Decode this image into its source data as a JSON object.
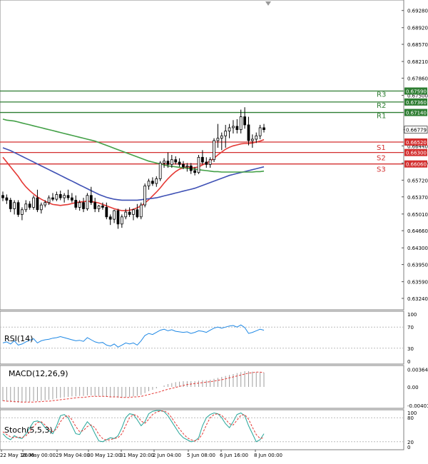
{
  "chart_data": [
    {
      "type": "candlestick",
      "panel": "price",
      "ylim": [
        0.63,
        0.695
      ],
      "y_ticks": [
        "0.69280",
        "0.68920",
        "0.68570",
        "0.68210",
        "0.67860",
        "0.67500",
        "0.66440",
        "0.66080",
        "0.65720",
        "0.65370",
        "0.65010",
        "0.64660",
        "0.64300",
        "0.63950",
        "0.63590",
        "0.63240"
      ],
      "current_price": "0.66779",
      "levels": [
        {
          "name": "R3",
          "value": "0.67590",
          "color": "#2e7d32"
        },
        {
          "name": "R2",
          "value": "0.67360",
          "color": "#2e7d32"
        },
        {
          "name": "R1",
          "value": "0.67140",
          "color": "#2e7d32"
        },
        {
          "name": "S1",
          "value": "0.66520",
          "color": "#d32f2f"
        },
        {
          "name": "S2",
          "value": "0.66300",
          "color": "#d32f2f"
        },
        {
          "name": "S3",
          "value": "0.66060",
          "color": "#d32f2f"
        }
      ],
      "candles": [
        [
          0.654,
          0.6548,
          0.6528,
          0.6535
        ],
        [
          0.6535,
          0.6542,
          0.6522,
          0.653
        ],
        [
          0.653,
          0.6535,
          0.6505,
          0.6512
        ],
        [
          0.6512,
          0.653,
          0.65,
          0.6525
        ],
        [
          0.6525,
          0.653,
          0.6495,
          0.65
        ],
        [
          0.65,
          0.6515,
          0.6488,
          0.651
        ],
        [
          0.651,
          0.653,
          0.6505,
          0.6522
        ],
        [
          0.6522,
          0.6528,
          0.651,
          0.6515
        ],
        [
          0.6515,
          0.654,
          0.651,
          0.6535
        ],
        [
          0.6535,
          0.6552,
          0.6505,
          0.651
        ],
        [
          0.651,
          0.6525,
          0.6502,
          0.652
        ],
        [
          0.652,
          0.653,
          0.6515,
          0.6525
        ],
        [
          0.6525,
          0.654,
          0.652,
          0.6535
        ],
        [
          0.6535,
          0.6545,
          0.6528,
          0.6532
        ],
        [
          0.6532,
          0.6548,
          0.6528,
          0.6542
        ],
        [
          0.6542,
          0.655,
          0.653,
          0.6535
        ],
        [
          0.6535,
          0.6545,
          0.6525,
          0.654
        ],
        [
          0.654,
          0.6552,
          0.653,
          0.6535
        ],
        [
          0.6535,
          0.6545,
          0.6525,
          0.653
        ],
        [
          0.653,
          0.654,
          0.651,
          0.6515
        ],
        [
          0.6515,
          0.653,
          0.6508,
          0.6525
        ],
        [
          0.6525,
          0.6535,
          0.6505,
          0.6512
        ],
        [
          0.6512,
          0.6545,
          0.6508,
          0.654
        ],
        [
          0.654,
          0.6558,
          0.652,
          0.6525
        ],
        [
          0.6525,
          0.6535,
          0.6505,
          0.6512
        ],
        [
          0.6512,
          0.652,
          0.6505,
          0.6518
        ],
        [
          0.6518,
          0.6525,
          0.651,
          0.6515
        ],
        [
          0.6515,
          0.6525,
          0.649,
          0.6495
        ],
        [
          0.6495,
          0.65,
          0.6478,
          0.649
        ],
        [
          0.649,
          0.651,
          0.6482,
          0.6508
        ],
        [
          0.6508,
          0.6512,
          0.647,
          0.648
        ],
        [
          0.648,
          0.65,
          0.6472,
          0.6495
        ],
        [
          0.6495,
          0.6512,
          0.649,
          0.6505
        ],
        [
          0.6505,
          0.6515,
          0.6495,
          0.65
        ],
        [
          0.65,
          0.6512,
          0.6488,
          0.651
        ],
        [
          0.651,
          0.6522,
          0.6492,
          0.6495
        ],
        [
          0.6495,
          0.6525,
          0.649,
          0.652
        ],
        [
          0.652,
          0.6565,
          0.6515,
          0.656
        ],
        [
          0.656,
          0.6575,
          0.6552,
          0.657
        ],
        [
          0.657,
          0.6578,
          0.656,
          0.6565
        ],
        [
          0.6565,
          0.658,
          0.6558,
          0.6575
        ],
        [
          0.6575,
          0.6612,
          0.657,
          0.6608
        ],
        [
          0.6608,
          0.6618,
          0.6598,
          0.6612
        ],
        [
          0.6612,
          0.663,
          0.6598,
          0.6605
        ],
        [
          0.6605,
          0.6625,
          0.6598,
          0.6615
        ],
        [
          0.6615,
          0.6622,
          0.6605,
          0.661
        ],
        [
          0.661,
          0.6618,
          0.66,
          0.6605
        ],
        [
          0.6605,
          0.6612,
          0.6595,
          0.66
        ],
        [
          0.66,
          0.6608,
          0.659,
          0.6602
        ],
        [
          0.6602,
          0.6608,
          0.6585,
          0.6592
        ],
        [
          0.6592,
          0.66,
          0.6582,
          0.6588
        ],
        [
          0.6588,
          0.6625,
          0.6585,
          0.662
        ],
        [
          0.662,
          0.6635,
          0.6605,
          0.661
        ],
        [
          0.661,
          0.662,
          0.6598,
          0.6605
        ],
        [
          0.6605,
          0.662,
          0.6598,
          0.6615
        ],
        [
          0.6615,
          0.666,
          0.661,
          0.6655
        ],
        [
          0.6655,
          0.669,
          0.664,
          0.666
        ],
        [
          0.666,
          0.6672,
          0.6635,
          0.6665
        ],
        [
          0.6665,
          0.6688,
          0.664,
          0.6675
        ],
        [
          0.6675,
          0.669,
          0.666,
          0.6682
        ],
        [
          0.6682,
          0.6698,
          0.667,
          0.6685
        ],
        [
          0.6685,
          0.67,
          0.667,
          0.6678
        ],
        [
          0.6678,
          0.672,
          0.667,
          0.6705
        ],
        [
          0.6705,
          0.6725,
          0.668,
          0.6688
        ],
        [
          0.6688,
          0.6705,
          0.6645,
          0.6655
        ],
        [
          0.6655,
          0.6668,
          0.664,
          0.6658
        ],
        [
          0.6658,
          0.6672,
          0.665,
          0.6665
        ],
        [
          0.6665,
          0.6688,
          0.6658,
          0.6682
        ],
        [
          0.6682,
          0.669,
          0.6672,
          0.6678
        ]
      ],
      "moving_averages": [
        {
          "color": "#e53935",
          "values": [
            0.662,
            0.661,
            0.66,
            0.659,
            0.658,
            0.6568,
            0.6558,
            0.655,
            0.6543,
            0.6537,
            0.6532,
            0.6528,
            0.6524,
            0.6521,
            0.652,
            0.6519,
            0.652,
            0.6521,
            0.6523,
            0.6525,
            0.6526,
            0.6527,
            0.6528,
            0.6527,
            0.6526,
            0.6524,
            0.6521,
            0.6518,
            0.6515,
            0.6512,
            0.651,
            0.6508,
            0.6508,
            0.6509,
            0.6511,
            0.6514,
            0.6518,
            0.6524,
            0.6531,
            0.6539,
            0.6547,
            0.6556,
            0.6566,
            0.6575,
            0.6583,
            0.659,
            0.6595,
            0.6598,
            0.66,
            0.6599,
            0.6598,
            0.66,
            0.6604,
            0.6608,
            0.6612,
            0.6618,
            0.6625,
            0.6631,
            0.6637,
            0.6641,
            0.6644,
            0.6646,
            0.6648,
            0.6649,
            0.6649,
            0.665,
            0.6652,
            0.6654,
            0.6657
          ]
        },
        {
          "color": "#3f51b5",
          "values": [
            0.664,
            0.6637,
            0.6634,
            0.663,
            0.6626,
            0.6622,
            0.6618,
            0.6614,
            0.661,
            0.6606,
            0.6602,
            0.6598,
            0.6594,
            0.659,
            0.6586,
            0.6582,
            0.6578,
            0.6574,
            0.657,
            0.6566,
            0.6562,
            0.6558,
            0.6554,
            0.655,
            0.6546,
            0.6542,
            0.6539,
            0.6536,
            0.6534,
            0.6532,
            0.6531,
            0.653,
            0.653,
            0.653,
            0.653,
            0.653,
            0.6531,
            0.6532,
            0.6533,
            0.6534,
            0.6535,
            0.6537,
            0.6539,
            0.6541,
            0.6543,
            0.6545,
            0.6547,
            0.6549,
            0.6551,
            0.6553,
            0.6555,
            0.6558,
            0.6561,
            0.6564,
            0.6567,
            0.657,
            0.6573,
            0.6576,
            0.6579,
            0.6582,
            0.6584,
            0.6586,
            0.6588,
            0.659,
            0.6592,
            0.6594,
            0.6596,
            0.6598,
            0.66
          ]
        },
        {
          "color": "#43a047",
          "values": [
            0.67,
            0.6698,
            0.6697,
            0.6696,
            0.6694,
            0.6692,
            0.669,
            0.6688,
            0.6686,
            0.6684,
            0.6682,
            0.668,
            0.6678,
            0.6676,
            0.6674,
            0.6672,
            0.667,
            0.6668,
            0.6666,
            0.6664,
            0.6662,
            0.666,
            0.6658,
            0.6656,
            0.6654,
            0.6651,
            0.6648,
            0.6645,
            0.6642,
            0.6639,
            0.6636,
            0.6633,
            0.663,
            0.6627,
            0.6624,
            0.6621,
            0.6618,
            0.6615,
            0.6612,
            0.661,
            0.6608,
            0.6606,
            0.6604,
            0.6602,
            0.6601,
            0.66,
            0.6599,
            0.6598,
            0.6597,
            0.6596,
            0.6595,
            0.6594,
            0.6593,
            0.6592,
            0.6591,
            0.659,
            0.659,
            0.6589,
            0.6589,
            0.6589,
            0.6589,
            0.6589,
            0.6589,
            0.6589,
            0.6589,
            0.6589,
            0.659,
            0.659,
            0.6591
          ]
        }
      ]
    },
    {
      "type": "line",
      "panel": "rsi",
      "label": "RSI(14)",
      "ylim": [
        0,
        100
      ],
      "y_ticks": [
        "100",
        "70",
        "30",
        "0"
      ],
      "values": [
        40,
        42,
        38,
        44,
        36,
        38,
        42,
        45,
        48,
        40,
        44,
        46,
        47,
        49,
        50,
        52,
        50,
        48,
        46,
        44,
        45,
        43,
        50,
        46,
        42,
        40,
        41,
        36,
        34,
        38,
        32,
        36,
        40,
        38,
        40,
        36,
        44,
        54,
        58,
        56,
        60,
        64,
        66,
        63,
        65,
        62,
        61,
        60,
        61,
        58,
        60,
        63,
        62,
        60,
        64,
        68,
        70,
        68,
        70,
        72,
        73,
        70,
        74,
        69,
        58,
        60,
        63,
        66,
        64
      ]
    },
    {
      "type": "bar",
      "panel": "macd",
      "label": "MACD(12,26,9)",
      "ylim": [
        -0.0045,
        0.0045
      ],
      "y_ticks": [
        "0.003642",
        "0.00",
        "-0.004014"
      ],
      "histogram": [
        -0.003,
        -0.0031,
        -0.0032,
        -0.0032,
        -0.0033,
        -0.0033,
        -0.0032,
        -0.0031,
        -0.003,
        -0.003,
        -0.0029,
        -0.0028,
        -0.0027,
        -0.0026,
        -0.0024,
        -0.0023,
        -0.0022,
        -0.0021,
        -0.002,
        -0.002,
        -0.0019,
        -0.0019,
        -0.0018,
        -0.0018,
        -0.0019,
        -0.0019,
        -0.002,
        -0.0021,
        -0.0022,
        -0.0022,
        -0.0023,
        -0.0023,
        -0.0022,
        -0.0021,
        -0.002,
        -0.0019,
        -0.0017,
        -0.0013,
        -0.0009,
        -0.0006,
        -0.0003,
        0.0,
        0.0003,
        0.0006,
        0.0008,
        0.001,
        0.0011,
        0.0012,
        0.0012,
        0.0012,
        0.0012,
        0.0013,
        0.0014,
        0.0014,
        0.0015,
        0.0017,
        0.0019,
        0.0021,
        0.0023,
        0.0025,
        0.0027,
        0.0029,
        0.0031,
        0.0033,
        0.0033,
        0.0032,
        0.0031,
        0.0031,
        0.003
      ],
      "signal": [
        -0.0029,
        -0.003,
        -0.003,
        -0.0031,
        -0.0031,
        -0.0032,
        -0.0032,
        -0.0032,
        -0.0032,
        -0.0031,
        -0.0031,
        -0.003,
        -0.003,
        -0.0029,
        -0.0028,
        -0.0027,
        -0.0026,
        -0.0025,
        -0.0024,
        -0.0023,
        -0.0022,
        -0.0022,
        -0.0021,
        -0.002,
        -0.002,
        -0.002,
        -0.002,
        -0.002,
        -0.0021,
        -0.0021,
        -0.0021,
        -0.0022,
        -0.0022,
        -0.0022,
        -0.0021,
        -0.0021,
        -0.002,
        -0.0018,
        -0.0016,
        -0.0014,
        -0.0012,
        -0.001,
        -0.0007,
        -0.0005,
        -0.0003,
        -0.0001,
        0.0001,
        0.0003,
        0.0005,
        0.0006,
        0.0007,
        0.0008,
        0.0009,
        0.001,
        0.0011,
        0.0012,
        0.0014,
        0.0015,
        0.0017,
        0.0019,
        0.0021,
        0.0023,
        0.0025,
        0.0027,
        0.0029,
        0.003,
        0.0031,
        0.0031,
        0.003
      ]
    },
    {
      "type": "line",
      "panel": "stoch",
      "label": "Stoch(5,5,3)",
      "ylim": [
        0,
        100
      ],
      "y_ticks": [
        "100",
        "80",
        "20",
        "0"
      ],
      "main": [
        40,
        30,
        25,
        35,
        30,
        28,
        40,
        55,
        70,
        72,
        68,
        55,
        48,
        40,
        60,
        85,
        88,
        80,
        60,
        40,
        38,
        55,
        70,
        60,
        40,
        22,
        20,
        25,
        30,
        28,
        35,
        55,
        80,
        90,
        88,
        75,
        60,
        70,
        90,
        96,
        98,
        98,
        95,
        85,
        70,
        55,
        40,
        30,
        25,
        20,
        22,
        30,
        60,
        80,
        88,
        92,
        90,
        80,
        65,
        55,
        70,
        88,
        92,
        85,
        60,
        40,
        20,
        25,
        40
      ],
      "signal": [
        45,
        38,
        32,
        30,
        32,
        30,
        35,
        45,
        58,
        68,
        70,
        62,
        52,
        45,
        52,
        70,
        82,
        86,
        75,
        58,
        45,
        48,
        58,
        62,
        55,
        38,
        28,
        24,
        25,
        28,
        30,
        40,
        60,
        80,
        88,
        85,
        72,
        66,
        76,
        88,
        94,
        97,
        97,
        92,
        80,
        65,
        52,
        40,
        30,
        25,
        22,
        26,
        40,
        62,
        80,
        88,
        90,
        86,
        76,
        65,
        62,
        74,
        86,
        88,
        76,
        56,
        38,
        28,
        30
      ]
    }
  ],
  "time_axis": {
    "labels": [
      "22 May 16:00",
      "26 May 00:00",
      "29 May 04:00",
      "30 May 12:00",
      "31 May 20:00",
      "2 Jun 04:00",
      "5 Jun 08:00",
      "6 Jun 16:00",
      "8 Jun 00:00"
    ]
  }
}
